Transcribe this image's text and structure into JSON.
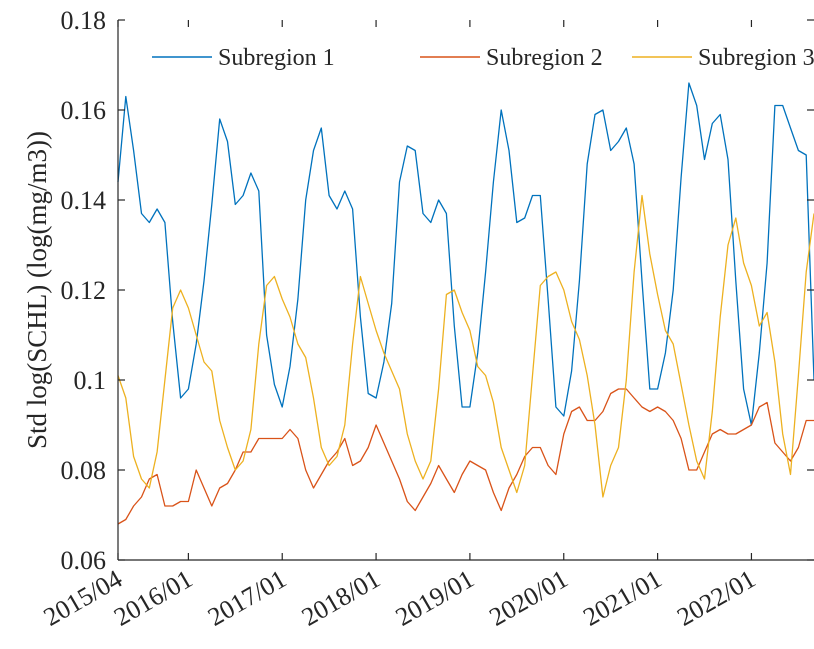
{
  "chart_data": {
    "type": "line",
    "title": "",
    "xlabel": "",
    "ylabel": "Std log(SCHL) (log(mg/m3))",
    "ylim": [
      0.06,
      0.18
    ],
    "yticks": [
      0.06,
      0.08,
      0.1,
      0.12,
      0.14,
      0.16,
      0.18
    ],
    "ytick_labels": [
      "0.06",
      "0.08",
      "0.1",
      "0.12",
      "0.14",
      "0.16",
      "0.18"
    ],
    "xlim": [
      "2015/04",
      "2022/09"
    ],
    "xticks": [
      "2015/04",
      "2016/01",
      "2017/01",
      "2018/01",
      "2019/01",
      "2020/01",
      "2021/01",
      "2022/01"
    ],
    "grid": false,
    "legend_position": "top",
    "x": [
      "2015/04",
      "2015/05",
      "2015/06",
      "2015/07",
      "2015/08",
      "2015/09",
      "2015/10",
      "2015/11",
      "2015/12",
      "2016/01",
      "2016/02",
      "2016/03",
      "2016/04",
      "2016/05",
      "2016/06",
      "2016/07",
      "2016/08",
      "2016/09",
      "2016/10",
      "2016/11",
      "2016/12",
      "2017/01",
      "2017/02",
      "2017/03",
      "2017/04",
      "2017/05",
      "2017/06",
      "2017/07",
      "2017/08",
      "2017/09",
      "2017/10",
      "2017/11",
      "2017/12",
      "2018/01",
      "2018/02",
      "2018/03",
      "2018/04",
      "2018/05",
      "2018/06",
      "2018/07",
      "2018/08",
      "2018/09",
      "2018/10",
      "2018/11",
      "2018/12",
      "2019/01",
      "2019/02",
      "2019/03",
      "2019/04",
      "2019/05",
      "2019/06",
      "2019/07",
      "2019/08",
      "2019/09",
      "2019/10",
      "2019/11",
      "2019/12",
      "2020/01",
      "2020/02",
      "2020/03",
      "2020/04",
      "2020/05",
      "2020/06",
      "2020/07",
      "2020/08",
      "2020/09",
      "2020/10",
      "2020/11",
      "2020/12",
      "2021/01",
      "2021/02",
      "2021/03",
      "2021/04",
      "2021/05",
      "2021/06",
      "2021/07",
      "2021/08",
      "2021/09",
      "2021/10",
      "2021/11",
      "2021/12",
      "2022/01",
      "2022/02",
      "2022/03",
      "2022/04",
      "2022/05",
      "2022/06",
      "2022/07",
      "2022/08",
      "2022/09"
    ],
    "series": [
      {
        "name": "Subregion 1",
        "color": "#0072BD",
        "values": [
          0.144,
          0.163,
          0.151,
          0.137,
          0.135,
          0.138,
          0.135,
          0.113,
          0.096,
          0.098,
          0.108,
          0.122,
          0.139,
          0.158,
          0.153,
          0.139,
          0.141,
          0.146,
          0.142,
          0.11,
          0.099,
          0.094,
          0.103,
          0.118,
          0.14,
          0.151,
          0.156,
          0.141,
          0.138,
          0.142,
          0.138,
          0.114,
          0.097,
          0.096,
          0.104,
          0.117,
          0.144,
          0.152,
          0.151,
          0.137,
          0.135,
          0.14,
          0.137,
          0.112,
          0.094,
          0.094,
          0.106,
          0.124,
          0.144,
          0.16,
          0.151,
          0.135,
          0.136,
          0.141,
          0.141,
          0.118,
          0.094,
          0.092,
          0.102,
          0.122,
          0.148,
          0.159,
          0.16,
          0.151,
          0.153,
          0.156,
          0.148,
          0.122,
          0.098,
          0.098,
          0.106,
          0.12,
          0.145,
          0.166,
          0.161,
          0.149,
          0.157,
          0.159,
          0.149,
          0.122,
          0.098,
          0.09,
          0.106,
          0.126,
          0.161,
          0.161,
          0.156,
          0.151,
          0.15,
          0.1
        ]
      },
      {
        "name": "Subregion 2",
        "color": "#D95319",
        "values": [
          0.068,
          0.069,
          0.072,
          0.074,
          0.078,
          0.079,
          0.072,
          0.072,
          0.073,
          0.073,
          0.08,
          0.076,
          0.072,
          0.076,
          0.077,
          0.08,
          0.084,
          0.084,
          0.087,
          0.087,
          0.087,
          0.087,
          0.089,
          0.087,
          0.08,
          0.076,
          0.079,
          0.082,
          0.084,
          0.087,
          0.081,
          0.082,
          0.085,
          0.09,
          0.086,
          0.082,
          0.078,
          0.073,
          0.071,
          0.074,
          0.077,
          0.081,
          0.078,
          0.075,
          0.079,
          0.082,
          0.081,
          0.08,
          0.075,
          0.071,
          0.076,
          0.079,
          0.083,
          0.085,
          0.085,
          0.081,
          0.079,
          0.088,
          0.093,
          0.094,
          0.091,
          0.091,
          0.093,
          0.097,
          0.098,
          0.098,
          0.096,
          0.094,
          0.093,
          0.094,
          0.093,
          0.091,
          0.087,
          0.08,
          0.08,
          0.084,
          0.088,
          0.089,
          0.088,
          0.088,
          0.089,
          0.09,
          0.094,
          0.095,
          0.086,
          0.084,
          0.082,
          0.085,
          0.091,
          0.091
        ]
      },
      {
        "name": "Subregion 3",
        "color": "#EDB120",
        "values": [
          0.101,
          0.096,
          0.083,
          0.078,
          0.076,
          0.084,
          0.1,
          0.116,
          0.12,
          0.116,
          0.11,
          0.104,
          0.102,
          0.091,
          0.085,
          0.08,
          0.082,
          0.089,
          0.108,
          0.121,
          0.123,
          0.118,
          0.114,
          0.108,
          0.105,
          0.096,
          0.085,
          0.081,
          0.083,
          0.09,
          0.108,
          0.123,
          0.117,
          0.111,
          0.106,
          0.102,
          0.098,
          0.088,
          0.082,
          0.078,
          0.082,
          0.098,
          0.119,
          0.12,
          0.115,
          0.111,
          0.103,
          0.101,
          0.095,
          0.085,
          0.08,
          0.075,
          0.081,
          0.101,
          0.121,
          0.123,
          0.124,
          0.12,
          0.113,
          0.109,
          0.101,
          0.09,
          0.074,
          0.081,
          0.085,
          0.1,
          0.124,
          0.141,
          0.128,
          0.119,
          0.111,
          0.108,
          0.099,
          0.09,
          0.082,
          0.078,
          0.093,
          0.114,
          0.13,
          0.136,
          0.126,
          0.121,
          0.112,
          0.115,
          0.104,
          0.088,
          0.079,
          0.101,
          0.124,
          0.137
        ]
      }
    ]
  }
}
